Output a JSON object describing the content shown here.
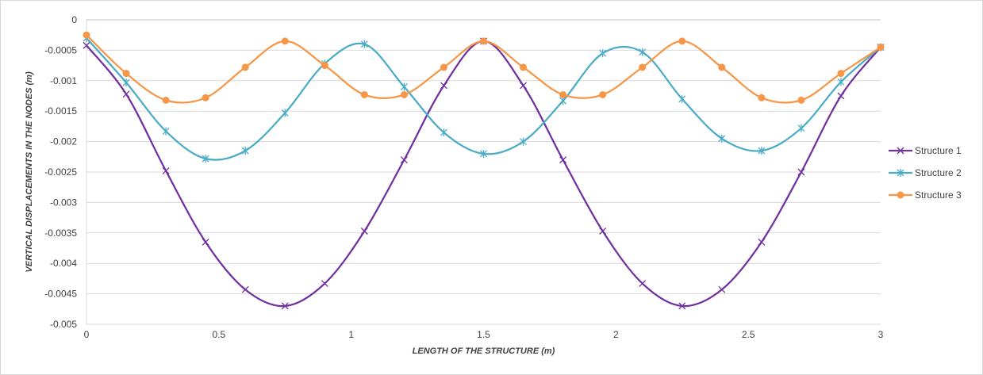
{
  "chart_data": {
    "type": "line",
    "title": "",
    "xlabel": "LENGTH OF THE STRUCTURE (m)",
    "ylabel": "VERTICAL DISPLACEMENTS IN THE NODES (m)",
    "xlim": [
      0,
      3
    ],
    "ylim": [
      -0.005,
      0
    ],
    "xticks": [
      0,
      0.5,
      1,
      1.5,
      2,
      2.5,
      3
    ],
    "xtick_labels": [
      "0",
      "0.5",
      "1",
      "1.5",
      "2",
      "2.5",
      "3"
    ],
    "yticks": [
      0,
      -0.0005,
      -0.001,
      -0.0015,
      -0.002,
      -0.0025,
      -0.003,
      -0.0035,
      -0.004,
      -0.0045,
      -0.005
    ],
    "ytick_labels": [
      "0",
      "-0.0005",
      "-0.001",
      "-0.0015",
      "-0.002",
      "-0.0025",
      "-0.003",
      "-0.0035",
      "-0.004",
      "-0.0045",
      "-0.005"
    ],
    "grid": "horizontal",
    "legend_position": "right",
    "x": [
      0,
      0.15,
      0.3,
      0.45,
      0.6,
      0.75,
      0.9,
      1.05,
      1.2,
      1.35,
      1.5,
      1.65,
      1.8,
      1.95,
      2.1,
      2.25,
      2.4,
      2.55,
      2.7,
      2.85,
      3.0
    ],
    "series": [
      {
        "name": "Structure 1",
        "color": "#7030a0",
        "marker": "x",
        "values": [
          -0.00042,
          -0.00122,
          -0.00248,
          -0.00365,
          -0.00443,
          -0.0047,
          -0.00433,
          -0.00347,
          -0.0023,
          -0.00108,
          -0.00035,
          -0.00108,
          -0.0023,
          -0.00347,
          -0.00433,
          -0.0047,
          -0.00443,
          -0.00365,
          -0.0025,
          -0.00125,
          -0.00045
        ]
      },
      {
        "name": "Structure 2",
        "color": "#4bacc6",
        "marker": "star",
        "values": [
          -0.0003,
          -0.00103,
          -0.00183,
          -0.00228,
          -0.00215,
          -0.00153,
          -0.00072,
          -0.0004,
          -0.0011,
          -0.00185,
          -0.0022,
          -0.002,
          -0.00133,
          -0.00055,
          -0.00053,
          -0.0013,
          -0.00195,
          -0.00215,
          -0.00178,
          -0.00102,
          -0.00045
        ]
      },
      {
        "name": "Structure 3",
        "color": "#f79646",
        "marker": "circle",
        "values": [
          -0.00025,
          -0.00088,
          -0.00132,
          -0.00128,
          -0.00078,
          -0.00035,
          -0.00075,
          -0.00123,
          -0.00123,
          -0.00078,
          -0.00035,
          -0.00078,
          -0.00123,
          -0.00123,
          -0.00078,
          -0.00035,
          -0.00078,
          -0.00128,
          -0.00132,
          -0.00088,
          -0.00045
        ]
      }
    ]
  }
}
